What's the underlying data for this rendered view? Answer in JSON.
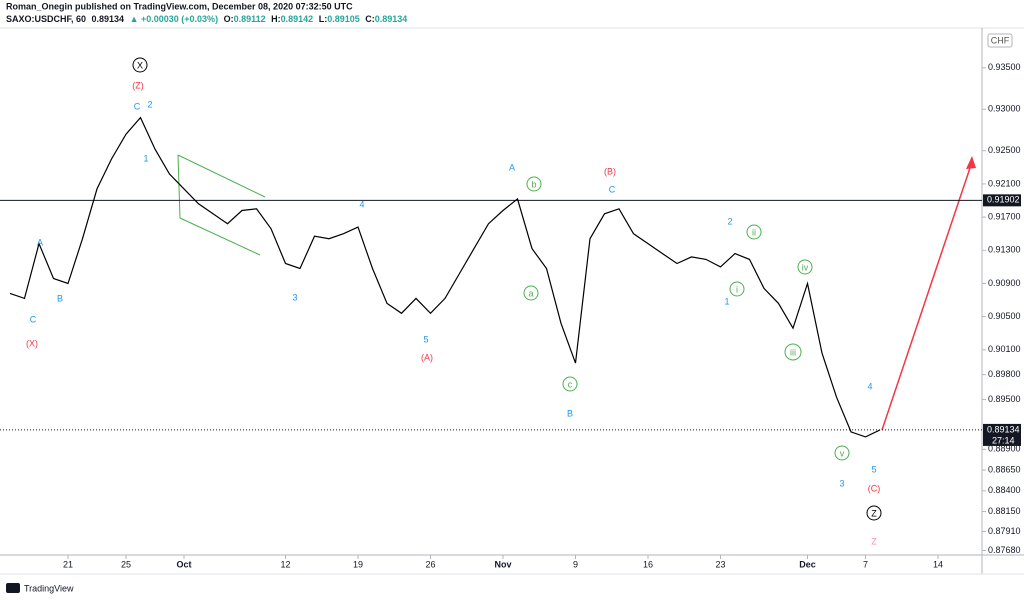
{
  "header": {
    "author": "Roman_Onegin published on TradingView.com, December 08, 2020 07:32:50 UTC",
    "symbol": "SAXO:USDCHF, 60",
    "last": "0.89134",
    "change": "▲ +0.00030 (+0.03%)",
    "ohlc": [
      {
        "key": "O:",
        "value": "0.89112"
      },
      {
        "key": "H:",
        "value": "0.89142"
      },
      {
        "key": "L:",
        "value": "0.89105"
      },
      {
        "key": "C:",
        "value": "0.89134"
      }
    ],
    "currency": "CHF",
    "brand": "TradingView"
  },
  "chart_data": {
    "type": "line",
    "color": "#000000",
    "grid": false,
    "categories": [
      null,
      null,
      null,
      null,
      "21",
      null,
      null,
      null,
      "25",
      null,
      null,
      null,
      "Oct",
      null,
      null,
      null,
      null,
      null,
      null,
      "12",
      null,
      null,
      null,
      null,
      "19",
      null,
      null,
      null,
      null,
      "26",
      null,
      null,
      null,
      null,
      "Nov",
      null,
      null,
      null,
      null,
      "9",
      null,
      null,
      null,
      null,
      "16",
      null,
      null,
      null,
      null,
      "23",
      null,
      null,
      null,
      null,
      null,
      "Dec",
      null,
      null,
      null,
      "7",
      null,
      null,
      null,
      null,
      "14",
      null,
      null
    ],
    "values": [
      0.9078,
      0.9072,
      0.9138,
      0.9096,
      0.909,
      0.9144,
      0.9204,
      0.924,
      0.927,
      0.929,
      0.9252,
      0.9222,
      0.9204,
      0.9186,
      0.9174,
      0.9162,
      0.9178,
      0.918,
      0.9156,
      0.9114,
      0.9108,
      0.9147,
      0.9144,
      0.915,
      0.9158,
      0.9108,
      0.9066,
      0.9054,
      0.9072,
      0.9054,
      0.9072,
      0.9102,
      0.9132,
      0.9162,
      0.9178,
      0.9192,
      0.9132,
      0.9108,
      0.9042,
      0.8994,
      0.9144,
      0.9174,
      0.918,
      0.915,
      0.9138,
      0.9126,
      0.9114,
      0.9122,
      0.9119,
      0.911,
      0.9126,
      0.9119,
      0.9084,
      0.9066,
      0.9036,
      0.909,
      0.9006,
      0.8953,
      0.8911,
      0.8905,
      0.89134,
      null,
      null,
      null,
      null,
      null,
      null
    ],
    "ylim": [
      0.8765,
      0.9398
    ],
    "yticks": [
      {
        "value": 0.935,
        "label": "0.93500"
      },
      {
        "value": 0.93,
        "label": "0.93000"
      },
      {
        "value": 0.925,
        "label": "0.92500"
      },
      {
        "value": 0.921,
        "label": "0.92100"
      },
      {
        "value": 0.917,
        "label": "0.91700"
      },
      {
        "value": 0.913,
        "label": "0.91300"
      },
      {
        "value": 0.909,
        "label": "0.90900"
      },
      {
        "value": 0.905,
        "label": "0.90500"
      },
      {
        "value": 0.901,
        "label": "0.90100"
      },
      {
        "value": 0.898,
        "label": "0.89800"
      },
      {
        "value": 0.895,
        "label": "0.89500"
      },
      {
        "value": 0.889,
        "label": "0.88900"
      },
      {
        "value": 0.8865,
        "label": "0.88650"
      },
      {
        "value": 0.884,
        "label": "0.88400"
      },
      {
        "value": 0.8815,
        "label": "0.88150"
      },
      {
        "value": 0.8791,
        "label": "0.87910"
      },
      {
        "value": 0.8768,
        "label": "0.87680"
      }
    ],
    "hline": {
      "value": 0.91902,
      "label": "0.91902"
    },
    "last_price": {
      "value": 0.89134,
      "label": "0.89134"
    },
    "countdown": "27:14",
    "annotations": [
      {
        "text": "X",
        "color": "#000000",
        "circled": true
      },
      {
        "text": "(Z)",
        "color": "#f23645",
        "circled": false
      },
      {
        "text": "C",
        "color": "#2196f3",
        "circled": false
      },
      {
        "text": "2",
        "color": "#2196f3",
        "circled": false
      },
      {
        "text": "1",
        "color": "#2196f3",
        "circled": false
      },
      {
        "text": "A",
        "color": "#2196f3",
        "circled": false
      },
      {
        "text": "B",
        "color": "#2196f3",
        "circled": false
      },
      {
        "text": "C",
        "color": "#2196f3",
        "circled": false
      },
      {
        "text": "(X)",
        "color": "#f23645",
        "circled": false
      },
      {
        "text": "4",
        "color": "#2196f3",
        "circled": false
      },
      {
        "text": "3",
        "color": "#2196f3",
        "circled": false
      },
      {
        "text": "5",
        "color": "#2196f3",
        "circled": false
      },
      {
        "text": "(A)",
        "color": "#f23645",
        "circled": false
      },
      {
        "text": "A",
        "color": "#2196f3",
        "circled": false
      },
      {
        "text": "b",
        "color": "#4caf50",
        "circled": true
      },
      {
        "text": "a",
        "color": "#4caf50",
        "circled": true
      },
      {
        "text": "c",
        "color": "#4caf50",
        "circled": true
      },
      {
        "text": "B",
        "color": "#2196f3",
        "circled": false
      },
      {
        "text": "(B)",
        "color": "#f23645",
        "circled": false
      },
      {
        "text": "C",
        "color": "#2196f3",
        "circled": false
      },
      {
        "text": "2",
        "color": "#2196f3",
        "circled": false
      },
      {
        "text": "ii",
        "color": "#4caf50",
        "circled": true
      },
      {
        "text": "i",
        "color": "#4caf50",
        "circled": true
      },
      {
        "text": "1",
        "color": "#2196f3",
        "circled": false
      },
      {
        "text": "iv",
        "color": "#4caf50",
        "circled": true
      },
      {
        "text": "iii",
        "color": "#4caf50",
        "circled": true
      },
      {
        "text": "4",
        "color": "#2196f3",
        "circled": false
      },
      {
        "text": "v",
        "color": "#4caf50",
        "circled": true
      },
      {
        "text": "5",
        "color": "#2196f3",
        "circled": false
      },
      {
        "text": "3",
        "color": "#2196f3",
        "circled": false
      },
      {
        "text": "(C)",
        "color": "#f23645",
        "circled": false
      },
      {
        "text": "Z",
        "color": "#000000",
        "circled": true
      },
      {
        "text": "Z",
        "color": "#f48fb1",
        "circled": false
      }
    ]
  }
}
